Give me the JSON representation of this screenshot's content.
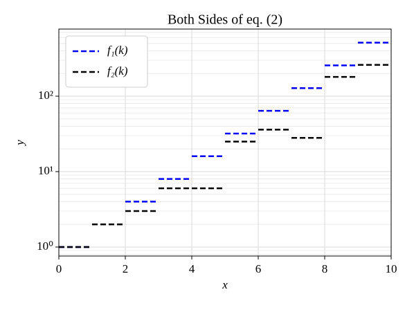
{
  "chart_data": {
    "type": "step",
    "title": "Both Sides of eq. (2)",
    "x_label": "x",
    "y_label": "y",
    "x": [
      0,
      1,
      2,
      3,
      4,
      5,
      6,
      7,
      8,
      9
    ],
    "series": [
      {
        "name": "f₁(k)",
        "color": "#0000ff",
        "values": [
          1,
          2,
          4,
          8,
          16,
          32,
          64,
          128,
          256,
          512
        ]
      },
      {
        "name": "f₂(k)",
        "color": "#000000",
        "values": [
          1,
          2,
          3,
          6,
          6,
          25,
          36,
          28,
          180,
          260
        ]
      }
    ],
    "xlim": [
      0,
      10
    ],
    "xticks": [
      0,
      2,
      4,
      6,
      8,
      10
    ],
    "ylim": [
      0.76,
      776
    ],
    "log_y": true,
    "yticks": [
      {
        "value": 1,
        "label": "10⁰"
      },
      {
        "value": 10,
        "label": "10¹"
      },
      {
        "value": 100,
        "label": "10²"
      }
    ],
    "yminorticks": [
      0.8,
      0.9,
      2,
      3,
      4,
      5,
      6,
      7,
      8,
      9,
      20,
      30,
      40,
      50,
      60,
      70,
      80,
      90,
      200,
      300,
      400,
      500,
      600,
      700
    ],
    "grid": true,
    "legend": "upper left"
  }
}
